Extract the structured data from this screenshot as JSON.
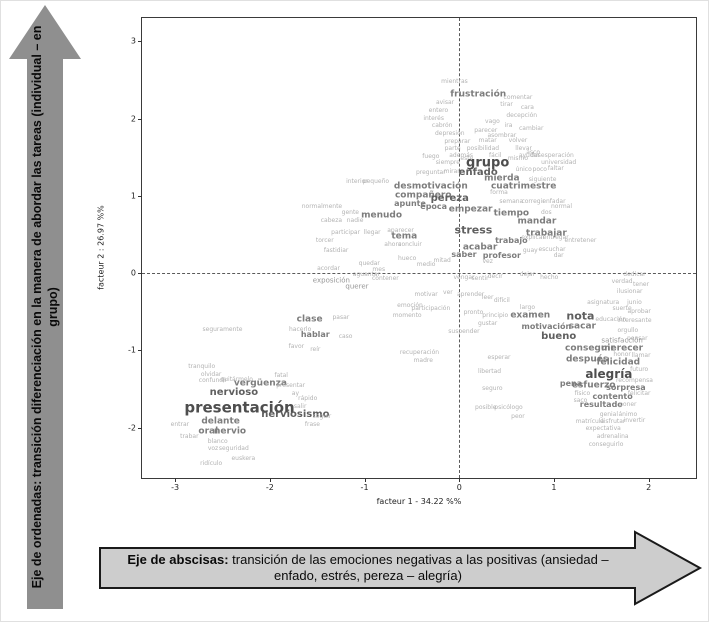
{
  "annotations": {
    "y_arrow": {
      "prefix": "Eje de ordenadas:",
      "text": " transición diferenciación en la manera de abordar las tareas (individual – en grupo)"
    },
    "x_arrow": {
      "prefix": "Eje de abscisas:",
      "text": " transición de las emociones negativas a las positivas (ansiedad – enfado, estrés, pereza – alegría)"
    }
  },
  "chart_data": {
    "type": "scatter",
    "title": "",
    "xlabel": "facteur 1 - 34.22 %%",
    "ylabel": "facteur 2 : 26.97 %%",
    "xlim": [
      -3.35,
      2.5
    ],
    "ylim": [
      -2.65,
      3.3
    ],
    "xticks": [
      -3,
      -2,
      -1,
      0,
      1,
      2
    ],
    "yticks": [
      -2,
      -1,
      0,
      1,
      2,
      3
    ],
    "grid": false,
    "reference_lines": {
      "x": 0,
      "y": 0,
      "style": "dashed"
    },
    "palette": {
      "xl": "#4e4e4e",
      "lg": "#5f5f5f",
      "md": "#7d7d7d",
      "sm": "#979797",
      "xs": "#b3b3b3"
    },
    "words": [
      {
        "t": "mientras",
        "x": -0.05,
        "y": 2.47,
        "s": 6
      },
      {
        "t": "frustración",
        "x": 0.2,
        "y": 2.3,
        "s": 9
      },
      {
        "t": "avisar",
        "x": -0.15,
        "y": 2.2,
        "s": 6
      },
      {
        "t": "comentar",
        "x": 0.62,
        "y": 2.27,
        "s": 6
      },
      {
        "t": "entero",
        "x": -0.22,
        "y": 2.1,
        "s": 6
      },
      {
        "t": "tirar",
        "x": 0.5,
        "y": 2.17,
        "s": 6
      },
      {
        "t": "cara",
        "x": 0.72,
        "y": 2.14,
        "s": 6
      },
      {
        "t": "interés",
        "x": -0.27,
        "y": 2.0,
        "s": 6
      },
      {
        "t": "decepción",
        "x": 0.66,
        "y": 2.03,
        "s": 6
      },
      {
        "t": "cabrón",
        "x": -0.18,
        "y": 1.9,
        "s": 6
      },
      {
        "t": "vago",
        "x": 0.35,
        "y": 1.95,
        "s": 6
      },
      {
        "t": "ira",
        "x": 0.52,
        "y": 1.9,
        "s": 6
      },
      {
        "t": "parecer",
        "x": 0.28,
        "y": 1.84,
        "s": 6
      },
      {
        "t": "cambiar",
        "x": 0.76,
        "y": 1.87,
        "s": 6
      },
      {
        "t": "depresión",
        "x": -0.1,
        "y": 1.8,
        "s": 6
      },
      {
        "t": "asombrar",
        "x": 0.45,
        "y": 1.78,
        "s": 6
      },
      {
        "t": "preparar",
        "x": -0.02,
        "y": 1.7,
        "s": 6
      },
      {
        "t": "matar",
        "x": 0.3,
        "y": 1.71,
        "s": 6
      },
      {
        "t": "volver",
        "x": 0.62,
        "y": 1.71,
        "s": 6
      },
      {
        "t": "parte",
        "x": -0.07,
        "y": 1.6,
        "s": 6
      },
      {
        "t": "posibilidad",
        "x": 0.25,
        "y": 1.61,
        "s": 6
      },
      {
        "t": "llevar",
        "x": 0.68,
        "y": 1.6,
        "s": 6
      },
      {
        "t": "además",
        "x": 0.02,
        "y": 1.51,
        "s": 6
      },
      {
        "t": "fácil",
        "x": 0.38,
        "y": 1.51,
        "s": 6
      },
      {
        "t": "ayudar",
        "x": 0.74,
        "y": 1.51,
        "s": 6
      },
      {
        "t": "fuego",
        "x": -0.3,
        "y": 1.5,
        "s": 6
      },
      {
        "t": "siempre",
        "x": -0.12,
        "y": 1.42,
        "s": 6
      },
      {
        "t": "este",
        "x": 0.08,
        "y": 1.47,
        "s": 6
      },
      {
        "t": "mismo",
        "x": 0.62,
        "y": 1.47,
        "s": 6
      },
      {
        "t": "grupo",
        "x": 0.3,
        "y": 1.42,
        "s": 13
      },
      {
        "t": "preguntar",
        "x": -0.3,
        "y": 1.3,
        "s": 6
      },
      {
        "t": "mirar",
        "x": -0.08,
        "y": 1.31,
        "s": 6
      },
      {
        "t": "enfado",
        "x": 0.2,
        "y": 1.3,
        "s": 10
      },
      {
        "t": "único",
        "x": 0.68,
        "y": 1.33,
        "s": 6
      },
      {
        "t": "poco",
        "x": 0.85,
        "y": 1.33,
        "s": 6
      },
      {
        "t": "siguiente",
        "x": 0.88,
        "y": 1.2,
        "s": 6
      },
      {
        "t": "mierda",
        "x": 0.45,
        "y": 1.22,
        "s": 9
      },
      {
        "t": "interior",
        "x": -1.08,
        "y": 1.18,
        "s": 6
      },
      {
        "t": "pequeño",
        "x": -0.88,
        "y": 1.18,
        "s": 6
      },
      {
        "t": "cuatrimestre",
        "x": 0.68,
        "y": 1.12,
        "s": 9
      },
      {
        "t": "desmotivación",
        "x": -0.3,
        "y": 1.12,
        "s": 9
      },
      {
        "t": "compañero",
        "x": -0.38,
        "y": 1.0,
        "s": 9
      },
      {
        "t": "forma",
        "x": 0.42,
        "y": 1.04,
        "s": 6
      },
      {
        "t": "pereza",
        "x": -0.1,
        "y": 0.96,
        "s": 10
      },
      {
        "t": "asco",
        "x": 0.78,
        "y": 1.56,
        "s": 6
      },
      {
        "t": "desesperación",
        "x": 0.98,
        "y": 1.52,
        "s": 6
      },
      {
        "t": "universidad",
        "x": 1.05,
        "y": 1.42,
        "s": 6
      },
      {
        "t": "faltar",
        "x": 1.02,
        "y": 1.35,
        "s": 6
      },
      {
        "t": "apunte",
        "x": -0.52,
        "y": 0.9,
        "s": 8
      },
      {
        "t": "época",
        "x": -0.27,
        "y": 0.86,
        "s": 8
      },
      {
        "t": "empezar",
        "x": 0.12,
        "y": 0.82,
        "s": 9
      },
      {
        "t": "semana",
        "x": 0.55,
        "y": 0.92,
        "s": 6
      },
      {
        "t": "corregir",
        "x": 0.78,
        "y": 0.92,
        "s": 6
      },
      {
        "t": "enfadar",
        "x": 1.0,
        "y": 0.92,
        "s": 6
      },
      {
        "t": "menudo",
        "x": -0.82,
        "y": 0.74,
        "s": 9
      },
      {
        "t": "tiempo",
        "x": 0.55,
        "y": 0.76,
        "s": 9
      },
      {
        "t": "dos",
        "x": 0.92,
        "y": 0.78,
        "s": 6
      },
      {
        "t": "normal",
        "x": 1.08,
        "y": 0.86,
        "s": 6
      },
      {
        "t": "mandar",
        "x": 0.82,
        "y": 0.66,
        "s": 9
      },
      {
        "t": "stress",
        "x": 0.15,
        "y": 0.56,
        "s": 11
      },
      {
        "t": "trabajar",
        "x": 0.92,
        "y": 0.5,
        "s": 9
      },
      {
        "t": "tema",
        "x": -0.58,
        "y": 0.47,
        "s": 9
      },
      {
        "t": "normalmente",
        "x": -1.45,
        "y": 0.85,
        "s": 6
      },
      {
        "t": "gente",
        "x": -1.15,
        "y": 0.78,
        "s": 6
      },
      {
        "t": "cabeza",
        "x": -1.35,
        "y": 0.67,
        "s": 6
      },
      {
        "t": "nadie",
        "x": -1.1,
        "y": 0.67,
        "s": 6
      },
      {
        "t": "participar",
        "x": -1.2,
        "y": 0.52,
        "s": 6
      },
      {
        "t": "llegar",
        "x": -0.92,
        "y": 0.52,
        "s": 6
      },
      {
        "t": "aparecer",
        "x": -0.62,
        "y": 0.55,
        "s": 6
      },
      {
        "t": "torcer",
        "x": -1.42,
        "y": 0.42,
        "s": 6
      },
      {
        "t": "fastidiar",
        "x": -1.3,
        "y": 0.28,
        "s": 6
      },
      {
        "t": "ahora",
        "x": -0.7,
        "y": 0.36,
        "s": 6
      },
      {
        "t": "concluir",
        "x": -0.52,
        "y": 0.36,
        "s": 6
      },
      {
        "t": "trabajo",
        "x": 0.55,
        "y": 0.42,
        "s": 8
      },
      {
        "t": "explicar",
        "x": 0.78,
        "y": 0.45,
        "s": 6
      },
      {
        "t": "entregar",
        "x": 1.02,
        "y": 0.45,
        "s": 6
      },
      {
        "t": "entretener",
        "x": 1.28,
        "y": 0.42,
        "s": 6
      },
      {
        "t": "acabar",
        "x": 0.22,
        "y": 0.33,
        "s": 9
      },
      {
        "t": "guay",
        "x": 0.75,
        "y": 0.28,
        "s": 6
      },
      {
        "t": "escuchar",
        "x": 0.98,
        "y": 0.3,
        "s": 6
      },
      {
        "t": "saber",
        "x": 0.05,
        "y": 0.24,
        "s": 8
      },
      {
        "t": "profesor",
        "x": 0.45,
        "y": 0.22,
        "s": 8
      },
      {
        "t": "dar",
        "x": 1.05,
        "y": 0.22,
        "s": 6
      },
      {
        "t": "hueco",
        "x": -0.55,
        "y": 0.18,
        "s": 6
      },
      {
        "t": "mitad",
        "x": -0.18,
        "y": 0.16,
        "s": 6
      },
      {
        "t": "medio",
        "x": -0.35,
        "y": 0.1,
        "s": 6
      },
      {
        "t": "vez",
        "x": 0.3,
        "y": 0.14,
        "s": 6
      },
      {
        "t": "quedar",
        "x": -0.95,
        "y": 0.12,
        "s": 6
      },
      {
        "t": "mes",
        "x": -0.85,
        "y": 0.04,
        "s": 6
      },
      {
        "t": "aguantar",
        "x": -0.98,
        "y": -0.03,
        "s": 6
      },
      {
        "t": "contener",
        "x": -0.78,
        "y": -0.08,
        "s": 6
      },
      {
        "t": "vengar",
        "x": 0.05,
        "y": -0.06,
        "s": 6
      },
      {
        "t": "sentir",
        "x": 0.22,
        "y": -0.08,
        "s": 6
      },
      {
        "t": "decir",
        "x": 0.38,
        "y": -0.05,
        "s": 6
      },
      {
        "t": "dejar",
        "x": 0.72,
        "y": -0.03,
        "s": 6
      },
      {
        "t": "hecho",
        "x": 0.95,
        "y": -0.06,
        "s": 6
      },
      {
        "t": "exposición",
        "x": -1.35,
        "y": -0.1,
        "s": 7
      },
      {
        "t": "querer",
        "x": -1.08,
        "y": -0.18,
        "s": 7
      },
      {
        "t": "acordar",
        "x": -1.38,
        "y": 0.05,
        "s": 6
      },
      {
        "t": "motivar",
        "x": -0.35,
        "y": -0.28,
        "s": 6
      },
      {
        "t": "ver",
        "x": -0.12,
        "y": -0.26,
        "s": 6
      },
      {
        "t": "aprender",
        "x": 0.12,
        "y": -0.28,
        "s": 6
      },
      {
        "t": "leer",
        "x": 0.3,
        "y": -0.32,
        "s": 6
      },
      {
        "t": "dedicar",
        "x": 1.85,
        "y": -0.03,
        "s": 6
      },
      {
        "t": "verdad",
        "x": 1.72,
        "y": -0.12,
        "s": 6
      },
      {
        "t": "tener",
        "x": 1.92,
        "y": -0.15,
        "s": 6
      },
      {
        "t": "ilusionar",
        "x": 1.8,
        "y": -0.25,
        "s": 6
      },
      {
        "t": "difícil",
        "x": 0.45,
        "y": -0.36,
        "s": 6
      },
      {
        "t": "asignatura",
        "x": 1.52,
        "y": -0.38,
        "s": 6
      },
      {
        "t": "junio",
        "x": 1.85,
        "y": -0.38,
        "s": 6
      },
      {
        "t": "suerte",
        "x": 1.72,
        "y": -0.46,
        "s": 6
      },
      {
        "t": "aprobar",
        "x": 1.9,
        "y": -0.5,
        "s": 6
      },
      {
        "t": "largo",
        "x": 0.72,
        "y": -0.45,
        "s": 6
      },
      {
        "t": "principio",
        "x": 0.38,
        "y": -0.55,
        "s": 6
      },
      {
        "t": "pronto",
        "x": 0.15,
        "y": -0.52,
        "s": 6
      },
      {
        "t": "gustar",
        "x": 0.3,
        "y": -0.66,
        "s": 6
      },
      {
        "t": "suspender",
        "x": 0.05,
        "y": -0.76,
        "s": 6
      },
      {
        "t": "emoción",
        "x": -0.52,
        "y": -0.43,
        "s": 6
      },
      {
        "t": "participación",
        "x": -0.3,
        "y": -0.46,
        "s": 6
      },
      {
        "t": "momento",
        "x": -0.55,
        "y": -0.56,
        "s": 6
      },
      {
        "t": "clase",
        "x": -1.58,
        "y": -0.6,
        "s": 9
      },
      {
        "t": "pasar",
        "x": -1.25,
        "y": -0.58,
        "s": 6
      },
      {
        "t": "hacerlo",
        "x": -1.68,
        "y": -0.73,
        "s": 6
      },
      {
        "t": "hablar",
        "x": -1.52,
        "y": -0.8,
        "s": 8
      },
      {
        "t": "caso",
        "x": -1.2,
        "y": -0.83,
        "s": 6
      },
      {
        "t": "favor",
        "x": -1.72,
        "y": -0.96,
        "s": 6
      },
      {
        "t": "reír",
        "x": -1.52,
        "y": -1.0,
        "s": 6
      },
      {
        "t": "examen",
        "x": 0.75,
        "y": -0.56,
        "s": 9
      },
      {
        "t": "nota",
        "x": 1.28,
        "y": -0.55,
        "s": 11
      },
      {
        "t": "educación",
        "x": 1.6,
        "y": -0.6,
        "s": 6
      },
      {
        "t": "interesante",
        "x": 1.85,
        "y": -0.62,
        "s": 6
      },
      {
        "t": "motivación",
        "x": 0.92,
        "y": -0.7,
        "s": 8
      },
      {
        "t": "sacar",
        "x": 1.3,
        "y": -0.7,
        "s": 9
      },
      {
        "t": "bueno",
        "x": 1.05,
        "y": -0.83,
        "s": 10
      },
      {
        "t": "orgullo",
        "x": 1.78,
        "y": -0.75,
        "s": 6
      },
      {
        "t": "pensar",
        "x": 1.88,
        "y": -0.85,
        "s": 6
      },
      {
        "t": "satisfacción",
        "x": 1.72,
        "y": -0.88,
        "s": 7
      },
      {
        "t": "conseguir",
        "x": 1.38,
        "y": -0.98,
        "s": 9
      },
      {
        "t": "merecer",
        "x": 1.72,
        "y": -0.98,
        "s": 9
      },
      {
        "t": "honor",
        "x": 1.72,
        "y": -1.06,
        "s": 6
      },
      {
        "t": "llamar",
        "x": 1.92,
        "y": -1.07,
        "s": 6
      },
      {
        "t": "después",
        "x": 1.35,
        "y": -1.12,
        "s": 9
      },
      {
        "t": "felicidad",
        "x": 1.68,
        "y": -1.16,
        "s": 9
      },
      {
        "t": "futuro",
        "x": 1.9,
        "y": -1.25,
        "s": 6
      },
      {
        "t": "alegría",
        "x": 1.58,
        "y": -1.3,
        "s": 12
      },
      {
        "t": "recompensa",
        "x": 1.85,
        "y": -1.4,
        "s": 6
      },
      {
        "t": "pena",
        "x": 1.18,
        "y": -1.43,
        "s": 8
      },
      {
        "t": "esfuerzo",
        "x": 1.42,
        "y": -1.46,
        "s": 9
      },
      {
        "t": "sorpresa",
        "x": 1.76,
        "y": -1.48,
        "s": 8
      },
      {
        "t": "físico",
        "x": 1.3,
        "y": -1.56,
        "s": 6
      },
      {
        "t": "contento",
        "x": 1.62,
        "y": -1.6,
        "s": 8
      },
      {
        "t": "felicitar",
        "x": 1.9,
        "y": -1.56,
        "s": 6
      },
      {
        "t": "saco",
        "x": 1.28,
        "y": -1.66,
        "s": 6
      },
      {
        "t": "resultado",
        "x": 1.5,
        "y": -1.71,
        "s": 8
      },
      {
        "t": "poner",
        "x": 1.78,
        "y": -1.71,
        "s": 6
      },
      {
        "t": "genial",
        "x": 1.58,
        "y": -1.83,
        "s": 6
      },
      {
        "t": "ánimo",
        "x": 1.78,
        "y": -1.83,
        "s": 6
      },
      {
        "t": "matrícula",
        "x": 1.38,
        "y": -1.93,
        "s": 6
      },
      {
        "t": "disfrutar",
        "x": 1.62,
        "y": -1.93,
        "s": 6
      },
      {
        "t": "invertir",
        "x": 1.85,
        "y": -1.91,
        "s": 6
      },
      {
        "t": "expectativa",
        "x": 1.52,
        "y": -2.02,
        "s": 6
      },
      {
        "t": "adrenalina",
        "x": 1.62,
        "y": -2.12,
        "s": 6
      },
      {
        "t": "conseguirlo",
        "x": 1.55,
        "y": -2.22,
        "s": 6
      },
      {
        "t": "esperar",
        "x": 0.42,
        "y": -1.1,
        "s": 6
      },
      {
        "t": "libertad",
        "x": 0.32,
        "y": -1.28,
        "s": 6
      },
      {
        "t": "seguro",
        "x": 0.35,
        "y": -1.5,
        "s": 6
      },
      {
        "t": "recuperación",
        "x": -0.42,
        "y": -1.03,
        "s": 6
      },
      {
        "t": "madre",
        "x": -0.38,
        "y": -1.14,
        "s": 6
      },
      {
        "t": "posible",
        "x": 0.28,
        "y": -1.75,
        "s": 6
      },
      {
        "t": "psicólogo",
        "x": 0.52,
        "y": -1.75,
        "s": 6
      },
      {
        "t": "peor",
        "x": 0.62,
        "y": -1.86,
        "s": 6
      },
      {
        "t": "seguramente",
        "x": -2.5,
        "y": -0.73,
        "s": 6
      },
      {
        "t": "tranquilo",
        "x": -2.72,
        "y": -1.22,
        "s": 6
      },
      {
        "t": "olvidar",
        "x": -2.62,
        "y": -1.32,
        "s": 6
      },
      {
        "t": "confundir",
        "x": -2.6,
        "y": -1.4,
        "s": 6
      },
      {
        "t": "quitármelo",
        "x": -2.35,
        "y": -1.38,
        "s": 6
      },
      {
        "t": "vergüenza",
        "x": -2.1,
        "y": -1.43,
        "s": 9
      },
      {
        "t": "presentar",
        "x": -1.78,
        "y": -1.46,
        "s": 6
      },
      {
        "t": "fatal",
        "x": -1.88,
        "y": -1.33,
        "s": 6
      },
      {
        "t": "nervioso",
        "x": -2.38,
        "y": -1.55,
        "s": 10
      },
      {
        "t": "ay",
        "x": -1.73,
        "y": -1.56,
        "s": 6
      },
      {
        "t": "rápido",
        "x": -1.6,
        "y": -1.63,
        "s": 6
      },
      {
        "t": "salir",
        "x": -1.68,
        "y": -1.73,
        "s": 6
      },
      {
        "t": "presentación",
        "x": -2.32,
        "y": -1.75,
        "s": 15
      },
      {
        "t": "nerviosismo",
        "x": -1.73,
        "y": -1.83,
        "s": 10
      },
      {
        "t": "seguir",
        "x": -1.45,
        "y": -1.86,
        "s": 6
      },
      {
        "t": "frase",
        "x": -1.55,
        "y": -1.97,
        "s": 6
      },
      {
        "t": "delante",
        "x": -2.52,
        "y": -1.93,
        "s": 9
      },
      {
        "t": "oral",
        "x": -2.65,
        "y": -2.06,
        "s": 9
      },
      {
        "t": "nervio",
        "x": -2.42,
        "y": -2.06,
        "s": 9
      },
      {
        "t": "entrar",
        "x": -2.95,
        "y": -1.97,
        "s": 6
      },
      {
        "t": "trabar",
        "x": -2.85,
        "y": -2.12,
        "s": 6
      },
      {
        "t": "blanco",
        "x": -2.55,
        "y": -2.18,
        "s": 6
      },
      {
        "t": "voz",
        "x": -2.6,
        "y": -2.28,
        "s": 6
      },
      {
        "t": "seguridad",
        "x": -2.38,
        "y": -2.28,
        "s": 6
      },
      {
        "t": "euskera",
        "x": -2.28,
        "y": -2.4,
        "s": 6
      },
      {
        "t": "ridículo",
        "x": -2.62,
        "y": -2.47,
        "s": 6
      }
    ]
  }
}
